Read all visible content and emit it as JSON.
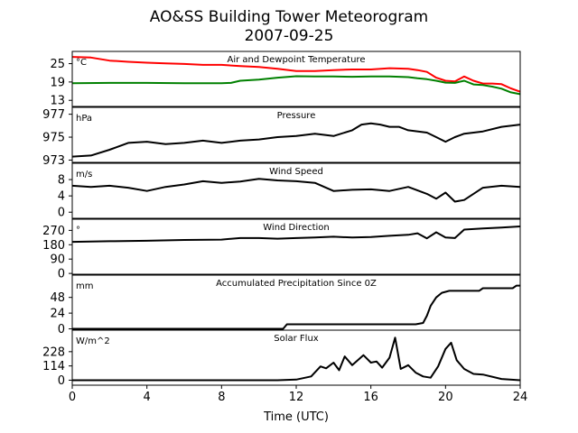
{
  "title_line1": "AO&SS Building Tower Meteorogram",
  "title_line2": "2007-09-25",
  "xlabel": "Time (UTC)",
  "colors": {
    "air": "#ff0000",
    "dewpoint": "#008000",
    "line": "#000000"
  },
  "chart_data": [
    {
      "type": "line",
      "title": "Air and Dewpoint Temperature",
      "unit": "°C",
      "ylim": [
        11,
        29
      ],
      "yticks": [
        13,
        19,
        25
      ],
      "xlim": [
        0,
        24
      ],
      "xticks": [
        0,
        4,
        8,
        12,
        16,
        20,
        24
      ],
      "series": [
        {
          "color": "#ff0000",
          "x": [
            0,
            1,
            2,
            3,
            4,
            5,
            6,
            7,
            8,
            9,
            10,
            11,
            12,
            13,
            14,
            15,
            16,
            17,
            18,
            18.5,
            19,
            19.5,
            20,
            20.5,
            21,
            21.5,
            22,
            22.5,
            23,
            23.5,
            24
          ],
          "values": [
            27.2,
            27,
            26,
            25.6,
            25.3,
            25.1,
            24.9,
            24.6,
            24.6,
            24.2,
            23.9,
            23.3,
            22.6,
            22.6,
            22.9,
            23.1,
            23.1,
            23.5,
            23.3,
            22.9,
            22.3,
            20.4,
            19.4,
            19.2,
            20.8,
            19.4,
            18.5,
            18.5,
            18.3,
            16.9,
            15.8
          ]
        },
        {
          "color": "#008000",
          "x": [
            0,
            2,
            4,
            6,
            8,
            8.5,
            9,
            10,
            11,
            12,
            13,
            14,
            15,
            16,
            17,
            18,
            18.5,
            19,
            19.5,
            20,
            20.5,
            21,
            21.5,
            22,
            22.5,
            23,
            23.5,
            24
          ],
          "values": [
            18.6,
            18.7,
            18.7,
            18.6,
            18.6,
            18.7,
            19.4,
            19.8,
            20.4,
            20.9,
            20.8,
            20.8,
            20.7,
            20.8,
            20.8,
            20.6,
            20.2,
            19.9,
            19.4,
            18.8,
            18.7,
            19.4,
            18.2,
            18.0,
            17.5,
            16.8,
            15.6,
            15.0
          ]
        }
      ]
    },
    {
      "type": "line",
      "title": "Pressure",
      "unit": "hPa",
      "ylim": [
        972.8,
        977.6
      ],
      "yticks": [
        973,
        975,
        977
      ],
      "xlim": [
        0,
        24
      ],
      "xticks": [
        0,
        4,
        8,
        12,
        16,
        20,
        24
      ],
      "series": [
        {
          "color": "#000000",
          "x": [
            0,
            1,
            2,
            3,
            4,
            5,
            6,
            7,
            8,
            9,
            10,
            11,
            12,
            13,
            14,
            15,
            15.5,
            16,
            16.5,
            17,
            17.5,
            18,
            19,
            19.5,
            20,
            20.5,
            21,
            22,
            23,
            24
          ],
          "values": [
            973.3,
            973.4,
            973.9,
            974.5,
            974.6,
            974.4,
            974.5,
            974.7,
            974.5,
            974.7,
            974.8,
            975.0,
            975.1,
            975.3,
            975.1,
            975.6,
            976.1,
            976.2,
            976.1,
            975.9,
            975.9,
            975.6,
            975.4,
            975.0,
            974.6,
            975.0,
            975.3,
            975.5,
            975.9,
            976.1
          ]
        }
      ]
    },
    {
      "type": "line",
      "title": "Wind Speed",
      "unit": "m/s",
      "ylim": [
        -1.5,
        12
      ],
      "yticks": [
        0,
        4,
        8
      ],
      "xlim": [
        0,
        24
      ],
      "xticks": [
        0,
        4,
        8,
        12,
        16,
        20,
        24
      ],
      "series": [
        {
          "color": "#000000",
          "x": [
            0,
            1,
            2,
            3,
            4,
            5,
            6,
            7,
            8,
            9,
            10,
            11,
            12,
            13,
            14,
            15,
            16,
            17,
            18,
            19,
            19.5,
            20,
            20.5,
            21,
            22,
            23,
            24
          ],
          "values": [
            6.5,
            6.2,
            6.5,
            6,
            5.2,
            6.2,
            6.8,
            7.6,
            7.2,
            7.5,
            8.2,
            7.8,
            7.6,
            7.2,
            5.2,
            5.5,
            5.6,
            5.2,
            6.2,
            4.5,
            3.3,
            4.8,
            2.6,
            3.0,
            6.0,
            6.5,
            6.2
          ]
        }
      ]
    },
    {
      "type": "line",
      "title": "Wind Direction",
      "unit": "°",
      "ylim": [
        -5,
        340
      ],
      "yticks": [
        0,
        90,
        180,
        270
      ],
      "xlim": [
        0,
        24
      ],
      "xticks": [
        0,
        4,
        8,
        12,
        16,
        20,
        24
      ],
      "series": [
        {
          "color": "#000000",
          "x": [
            0,
            2,
            4,
            6,
            8,
            9,
            10,
            11,
            12,
            13,
            14,
            15,
            16,
            17,
            18,
            18.5,
            19,
            19.5,
            20,
            20.5,
            21,
            22,
            23,
            24
          ],
          "values": [
            198,
            202,
            205,
            210,
            212,
            222,
            222,
            218,
            222,
            225,
            230,
            225,
            228,
            236,
            242,
            252,
            220,
            258,
            225,
            222,
            275,
            282,
            288,
            295
          ]
        }
      ]
    },
    {
      "type": "line",
      "title": "Accumulated Precipitation Since 0Z",
      "unit": "mm",
      "ylim": [
        -2,
        82
      ],
      "yticks": [
        0,
        24,
        48
      ],
      "xlim": [
        0,
        24
      ],
      "xticks": [
        0,
        4,
        8,
        12,
        16,
        20,
        24
      ],
      "series": [
        {
          "color": "#000000",
          "x": [
            0,
            11.3,
            11.5,
            18.4,
            18.8,
            19,
            19.2,
            19.5,
            19.8,
            20.2,
            21,
            21.8,
            22,
            23.6,
            23.8,
            24
          ],
          "values": [
            0,
            0,
            7,
            7,
            9,
            20,
            35,
            48,
            55,
            58,
            58,
            58,
            62,
            62,
            66,
            66
          ]
        }
      ]
    },
    {
      "type": "line",
      "title": "Solar Flux",
      "unit": "W/m^2",
      "ylim": [
        -40,
        400
      ],
      "yticks": [
        0,
        114,
        228
      ],
      "xlim": [
        0,
        24
      ],
      "xticks": [
        0,
        4,
        8,
        12,
        16,
        20,
        24
      ],
      "series": [
        {
          "color": "#000000",
          "x": [
            0,
            11,
            12,
            12.8,
            13.3,
            13.6,
            14,
            14.3,
            14.6,
            15,
            15.3,
            15.6,
            16,
            16.3,
            16.6,
            17,
            17.3,
            17.6,
            18,
            18.4,
            18.8,
            19.2,
            19.6,
            20,
            20.3,
            20.6,
            21,
            21.5,
            22,
            23,
            24
          ],
          "values": [
            0,
            0,
            5,
            30,
            110,
            95,
            140,
            80,
            190,
            120,
            160,
            200,
            140,
            150,
            100,
            180,
            340,
            90,
            120,
            60,
            30,
            20,
            110,
            250,
            300,
            160,
            90,
            50,
            45,
            10,
            0
          ]
        }
      ]
    }
  ]
}
